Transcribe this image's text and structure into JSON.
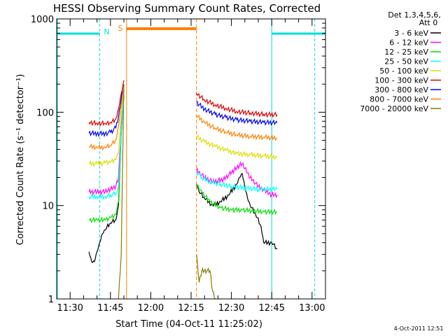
{
  "chart_data": {
    "type": "line",
    "title": "HESSI Observing Summary Count Rates, Corrected",
    "xlabel": "Start Time (04-Oct-11 11:25:02)",
    "ylabel": "Corrected Count Rate (s⁻¹ detector⁻¹)",
    "x_axis": {
      "scale": "time",
      "range": [
        "11:25",
        "13:05"
      ],
      "ticks": [
        "11:30",
        "11:45",
        "12:00",
        "12:15",
        "12:30",
        "12:45",
        "13:00"
      ]
    },
    "y_axis": {
      "scale": "log",
      "range": [
        1,
        1000
      ],
      "ticks": [
        "1",
        "10",
        "100",
        "1000"
      ]
    },
    "legend": {
      "position": "right",
      "header": [
        "Det 1,3,4,5,6,",
        "Att 0"
      ],
      "entries": [
        {
          "label": "3 - 6 keV",
          "color": "#000000"
        },
        {
          "label": "6 - 12 keV",
          "color": "#ff00ff"
        },
        {
          "label": "12 - 25 keV",
          "color": "#00dd00"
        },
        {
          "label": "25 - 50 keV",
          "color": "#00ffff"
        },
        {
          "label": "50 - 100 keV",
          "color": "#dddd00"
        },
        {
          "label": "100 - 300 keV",
          "color": "#dd0000"
        },
        {
          "label": "300 - 800 keV",
          "color": "#0000ee"
        },
        {
          "label": "800 - 7000 keV",
          "color": "#ff8000"
        },
        {
          "label": "7000 - 20000 keV",
          "color": "#808000"
        }
      ]
    },
    "flags": [
      {
        "label": "N",
        "color": "#00dddd"
      },
      {
        "label": "S",
        "color": "#ff8000"
      }
    ],
    "series": [
      {
        "name": "3 - 6 keV",
        "color": "#000000",
        "points": [
          [
            "11:37",
            3.2
          ],
          [
            "11:38",
            2.5
          ],
          [
            "11:39",
            2.5
          ],
          [
            "11:40",
            3.2
          ],
          [
            "11:41",
            4
          ],
          [
            "11:42",
            5
          ],
          [
            "11:43",
            5.5
          ],
          [
            "11:45",
            6.5
          ],
          [
            "11:47",
            7
          ],
          [
            "11:48",
            10
          ],
          [
            "11:49",
            60
          ],
          [
            "11:50",
            150
          ],
          [
            "12:17",
            17
          ],
          [
            "12:18",
            14
          ],
          [
            "12:20",
            12
          ],
          [
            "12:23",
            10
          ],
          [
            "12:26",
            11
          ],
          [
            "12:29",
            13
          ],
          [
            "12:32",
            17
          ],
          [
            "12:33",
            20
          ],
          [
            "12:34",
            22
          ],
          [
            "12:35",
            16
          ],
          [
            "12:36",
            12
          ],
          [
            "12:37",
            10
          ],
          [
            "12:39",
            8
          ],
          [
            "12:41",
            6
          ],
          [
            "12:42",
            4
          ],
          [
            "12:45",
            4
          ],
          [
            "12:47",
            3.4
          ]
        ]
      },
      {
        "name": "6 - 12 keV",
        "color": "#ff00ff",
        "points": [
          [
            "11:37",
            14
          ],
          [
            "11:40",
            14
          ],
          [
            "11:43",
            14
          ],
          [
            "11:45",
            15
          ],
          [
            "11:47",
            16
          ],
          [
            "11:48",
            20
          ],
          [
            "11:49",
            70
          ],
          [
            "11:50",
            170
          ],
          [
            "12:17",
            24
          ],
          [
            "12:20",
            20
          ],
          [
            "12:23",
            18
          ],
          [
            "12:27",
            19
          ],
          [
            "12:31",
            24
          ],
          [
            "12:33",
            27
          ],
          [
            "12:34",
            28
          ],
          [
            "12:35",
            25
          ],
          [
            "12:37",
            20
          ],
          [
            "12:40",
            16
          ],
          [
            "12:43",
            14
          ],
          [
            "12:45",
            13
          ],
          [
            "12:47",
            13
          ]
        ]
      },
      {
        "name": "12 - 25 keV",
        "color": "#00dd00",
        "points": [
          [
            "11:37",
            7
          ],
          [
            "11:40",
            7
          ],
          [
            "11:43",
            7
          ],
          [
            "11:45",
            7.5
          ],
          [
            "11:47",
            8
          ],
          [
            "11:48",
            11
          ],
          [
            "11:49",
            60
          ],
          [
            "11:50",
            150
          ],
          [
            "12:17",
            17
          ],
          [
            "12:19",
            14
          ],
          [
            "12:22",
            11
          ],
          [
            "12:26",
            9.5
          ],
          [
            "12:30",
            9
          ],
          [
            "12:34",
            9
          ],
          [
            "12:38",
            8.8
          ],
          [
            "12:42",
            8.6
          ],
          [
            "12:47",
            8.5
          ]
        ]
      },
      {
        "name": "25 - 50 keV",
        "color": "#00ffff",
        "points": [
          [
            "11:37",
            12.5
          ],
          [
            "11:40",
            12.5
          ],
          [
            "11:43",
            12.5
          ],
          [
            "11:45",
            13
          ],
          [
            "11:47",
            13.5
          ],
          [
            "11:48",
            16
          ],
          [
            "11:49",
            65
          ],
          [
            "11:50",
            170
          ],
          [
            "12:17",
            23
          ],
          [
            "12:19",
            20
          ],
          [
            "12:22",
            18
          ],
          [
            "12:26",
            17
          ],
          [
            "12:30",
            16
          ],
          [
            "12:35",
            15.5
          ],
          [
            "12:40",
            15
          ],
          [
            "12:47",
            15
          ]
        ]
      },
      {
        "name": "50 - 100 keV",
        "color": "#dddd00",
        "points": [
          [
            "11:37",
            28
          ],
          [
            "11:40",
            28
          ],
          [
            "11:43",
            28.5
          ],
          [
            "11:45",
            29
          ],
          [
            "11:47",
            31
          ],
          [
            "11:48",
            36
          ],
          [
            "11:49",
            90
          ],
          [
            "11:50",
            180
          ],
          [
            "12:17",
            55
          ],
          [
            "12:20",
            48
          ],
          [
            "12:24",
            43
          ],
          [
            "12:28",
            39
          ],
          [
            "12:32",
            36
          ],
          [
            "12:37",
            35
          ],
          [
            "12:42",
            34
          ],
          [
            "12:47",
            33
          ]
        ]
      },
      {
        "name": "100 - 300 keV",
        "color": "#dd0000",
        "points": [
          [
            "11:37",
            78
          ],
          [
            "11:40",
            76
          ],
          [
            "11:43",
            76
          ],
          [
            "11:45",
            78
          ],
          [
            "11:47",
            85
          ],
          [
            "11:48",
            110
          ],
          [
            "11:49",
            160
          ],
          [
            "11:50",
            220
          ],
          [
            "12:17",
            160
          ],
          [
            "12:20",
            135
          ],
          [
            "12:24",
            120
          ],
          [
            "12:28",
            110
          ],
          [
            "12:32",
            102
          ],
          [
            "12:37",
            98
          ],
          [
            "12:42",
            95
          ],
          [
            "12:47",
            94
          ]
        ]
      },
      {
        "name": "300 - 800 keV",
        "color": "#0000ee",
        "points": [
          [
            "11:37",
            60
          ],
          [
            "11:40",
            59
          ],
          [
            "11:43",
            59
          ],
          [
            "11:45",
            61
          ],
          [
            "11:47",
            68
          ],
          [
            "11:48",
            90
          ],
          [
            "11:49",
            140
          ],
          [
            "11:50",
            200
          ],
          [
            "12:17",
            128
          ],
          [
            "12:20",
            108
          ],
          [
            "12:24",
            95
          ],
          [
            "12:28",
            88
          ],
          [
            "12:32",
            83
          ],
          [
            "12:37",
            80
          ],
          [
            "12:42",
            78
          ],
          [
            "12:47",
            77
          ]
        ]
      },
      {
        "name": "800 - 7000 keV",
        "color": "#ff8000",
        "points": [
          [
            "11:37",
            43
          ],
          [
            "11:40",
            42
          ],
          [
            "11:43",
            42
          ],
          [
            "11:45",
            44
          ],
          [
            "11:47",
            50
          ],
          [
            "11:48",
            70
          ],
          [
            "11:49",
            120
          ],
          [
            "11:50",
            190
          ],
          [
            "12:17",
            92
          ],
          [
            "12:20",
            78
          ],
          [
            "12:24",
            67
          ],
          [
            "12:28",
            61
          ],
          [
            "12:32",
            57
          ],
          [
            "12:37",
            55
          ],
          [
            "12:42",
            54
          ],
          [
            "12:47",
            53
          ]
        ]
      },
      {
        "name": "7000 - 20000 keV",
        "color": "#808000",
        "points": [
          [
            "11:48",
            1
          ],
          [
            "11:49",
            3
          ],
          [
            "11:50",
            200
          ],
          [
            "12:17",
            3
          ],
          [
            "12:18",
            1.5
          ],
          [
            "12:19",
            2
          ],
          [
            "12:22",
            2
          ],
          [
            "12:23",
            1.2
          ],
          [
            "12:24",
            1
          ]
        ]
      }
    ]
  },
  "footer": {
    "timestamp": "4-Oct-2011 12:51"
  }
}
